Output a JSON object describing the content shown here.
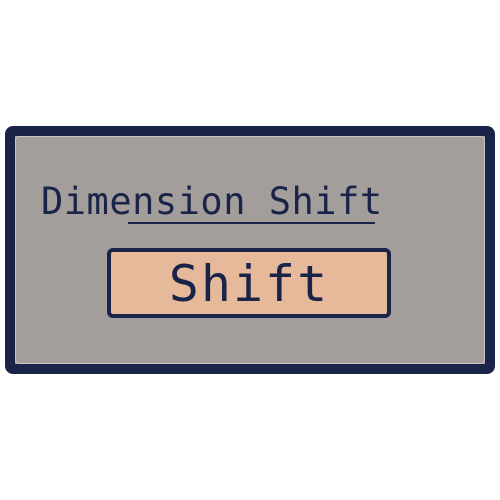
{
  "panel": {
    "title": "Dimension Shift",
    "button_label": "Shift"
  },
  "colors": {
    "page_background": "#ffffff",
    "panel_background": "#a39e9b",
    "border": "#1a2448",
    "button_background": "#e6b99b",
    "text": "#1a2448"
  }
}
